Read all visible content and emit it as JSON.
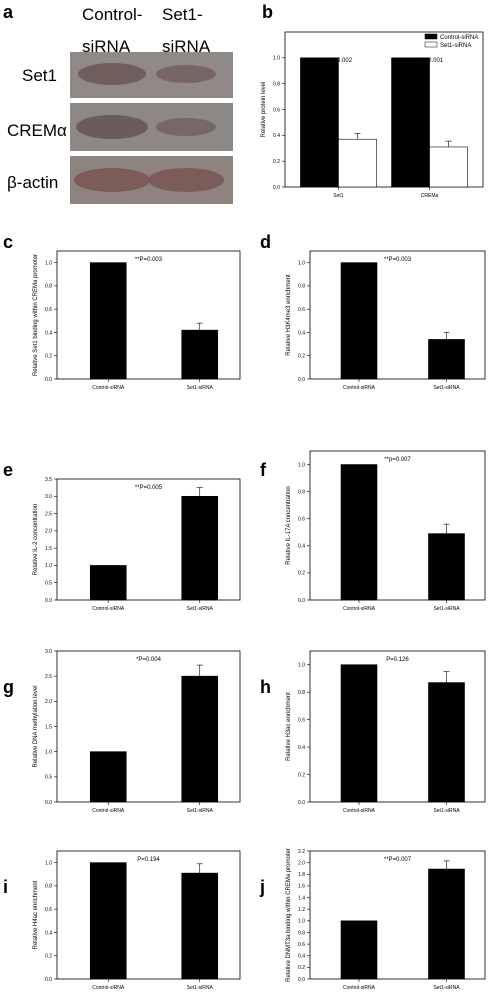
{
  "panel_a": {
    "letter": "a",
    "col1_line1": "Control-",
    "col1_line2": "siRNA",
    "col2_line1": "Set1-",
    "col2_line2": "siRNA",
    "rows": [
      "Set1",
      "CREMα",
      "β-actin"
    ]
  },
  "chart_data": [
    {
      "letter": "b",
      "type": "bar",
      "categories": [
        "Set1",
        "CREMa"
      ],
      "series": [
        {
          "name": "Control-siRNA",
          "values": [
            1.0,
            1.0
          ],
          "errors": [
            0,
            0
          ],
          "color": "#000000"
        },
        {
          "name": "Set1-siRNA",
          "values": [
            0.37,
            0.31
          ],
          "errors": [
            0.045,
            0.045
          ],
          "color": "#ffffff"
        }
      ],
      "ylabel": "Relative protein level",
      "ylim": [
        0,
        1.2
      ],
      "yticks": [
        "0.0",
        "0.2",
        "0.4",
        "0.6",
        "0.8",
        "1.0"
      ],
      "annotations": [
        "**P=0.002",
        "**P=0.001"
      ],
      "legend": "top-right"
    },
    {
      "letter": "c",
      "type": "bar",
      "categories": [
        "Control-siRNA",
        "Set1-siRNA"
      ],
      "values": [
        1.0,
        0.42
      ],
      "errors": [
        0,
        0.06
      ],
      "ylabel": "Relative Set1 binding within CREMa promoter",
      "ylim": [
        0,
        1.1
      ],
      "yticks": [
        "0.0",
        "0.2",
        "0.4",
        "0.6",
        "0.8",
        "1.0"
      ],
      "annotation": "**P=0.003"
    },
    {
      "letter": "d",
      "type": "bar",
      "categories": [
        "Control-siRNA",
        "Set1-siRNA"
      ],
      "values": [
        1.0,
        0.34
      ],
      "errors": [
        0,
        0.06
      ],
      "ylabel": "Relative H3K4me3 enrichment",
      "ylim": [
        0,
        1.1
      ],
      "yticks": [
        "0.0",
        "0.2",
        "0.4",
        "0.6",
        "0.8",
        "1.0"
      ],
      "annotation": "**P=0.003"
    },
    {
      "letter": "e",
      "type": "bar",
      "categories": [
        "Control-siRNA",
        "Set1-siRNA"
      ],
      "values": [
        1.0,
        3.0
      ],
      "errors": [
        0,
        0.25
      ],
      "ylabel": "Relative IL-2 concentration",
      "ylim": [
        0,
        3.5
      ],
      "yticks": [
        "0.0",
        "0.5",
        "1.0",
        "1.5",
        "2.0",
        "2.5",
        "3.0",
        "3.5"
      ],
      "annotation": "**P=0.005"
    },
    {
      "letter": "f",
      "type": "bar",
      "categories": [
        "Control-siRNA",
        "Set1-siRNA"
      ],
      "values": [
        1.0,
        0.49
      ],
      "errors": [
        0,
        0.07
      ],
      "ylabel": "Relative IL-17A concentration",
      "ylim": [
        0,
        1.1
      ],
      "yticks": [
        "0.0",
        "0.2",
        "0.4",
        "0.6",
        "0.8",
        "1.0"
      ],
      "annotation": "**p=0.007"
    },
    {
      "letter": "g",
      "type": "bar",
      "categories": [
        "Control-siRNA",
        "Set1-siRNA"
      ],
      "values": [
        1.0,
        2.5
      ],
      "errors": [
        0,
        0.22
      ],
      "ylabel": "Relative DNA methylation level",
      "ylim": [
        0,
        3.0
      ],
      "yticks": [
        "0.0",
        "0.5",
        "1.0",
        "1.5",
        "2.0",
        "2.5",
        "3.0"
      ],
      "annotation": "*P=0.004"
    },
    {
      "letter": "h",
      "type": "bar",
      "categories": [
        "Control-siRNA",
        "Set1-siRNA"
      ],
      "values": [
        1.0,
        0.87
      ],
      "errors": [
        0,
        0.08
      ],
      "ylabel": "Relative H3ac enrichment",
      "ylim": [
        0,
        1.1
      ],
      "yticks": [
        "0.0",
        "0.2",
        "0.4",
        "0.6",
        "0.8",
        "1.0"
      ],
      "annotation": "P=0.126"
    },
    {
      "letter": "i",
      "type": "bar",
      "categories": [
        "Control-siRNA",
        "Set1-siRNA"
      ],
      "values": [
        1.0,
        0.91
      ],
      "errors": [
        0,
        0.08
      ],
      "ylabel": "Relative H4ac enrichment",
      "ylim": [
        0,
        1.1
      ],
      "yticks": [
        "0.0",
        "0.2",
        "0.4",
        "0.6",
        "0.8",
        "1.0"
      ],
      "annotation": "P=0.194"
    },
    {
      "letter": "j",
      "type": "bar",
      "categories": [
        "Control-siRNA",
        "Set1-siRNA"
      ],
      "values": [
        1.0,
        1.89
      ],
      "errors": [
        0,
        0.14
      ],
      "ylabel": "Relative DNMT3a binding within CREMa promoter",
      "ylim": [
        0,
        2.2
      ],
      "yticks": [
        "0.0",
        "0.2",
        "0.4",
        "0.6",
        "0.8",
        "1.0",
        "1.2",
        "1.4",
        "1.6",
        "1.8",
        "2.0",
        "2.2"
      ],
      "annotation": "**P=0.007"
    }
  ]
}
